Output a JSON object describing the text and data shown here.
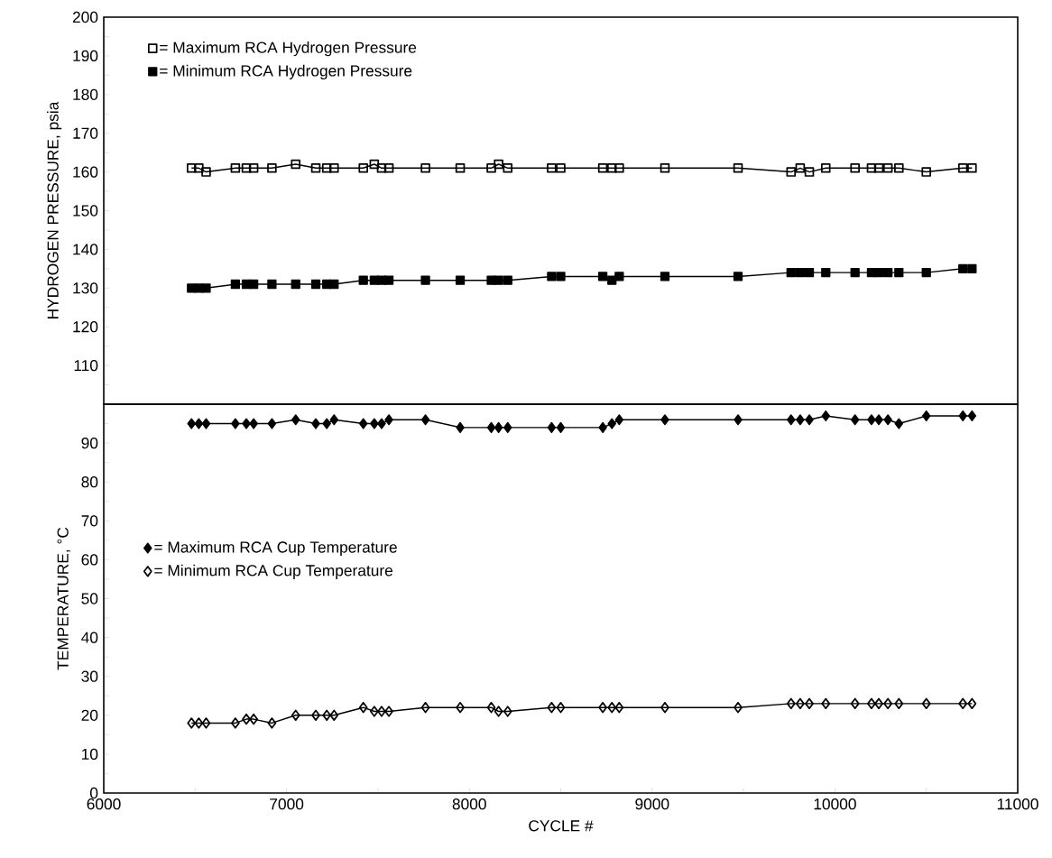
{
  "chart_data": [
    {
      "type": "line",
      "ylabel": "HYDROGEN PRESSURE, psia",
      "xlim": [
        6000,
        11000
      ],
      "ylim": [
        100,
        200
      ],
      "yticks": [
        {
          "value": 105,
          "label": null
        },
        110,
        {
          "value": 115,
          "label": null
        },
        120,
        {
          "value": 125,
          "label": null
        },
        130,
        {
          "value": 135,
          "label": null
        },
        140,
        {
          "value": 145,
          "label": null
        },
        150,
        {
          "value": 155,
          "label": null
        },
        160,
        {
          "value": 165,
          "label": null
        },
        170,
        {
          "value": 175,
          "label": null
        },
        180,
        {
          "value": 185,
          "label": null
        },
        190,
        {
          "value": 195,
          "label": null
        },
        200
      ],
      "tick_labels": "y",
      "legend": "top left",
      "x": [
        6480,
        6520,
        6560,
        6720,
        6780,
        6820,
        6920,
        7050,
        7160,
        7220,
        7260,
        7420,
        7480,
        7520,
        7560,
        7760,
        7950,
        8120,
        8160,
        8210,
        8450,
        8500,
        8730,
        8780,
        8820,
        9070,
        9470,
        9760,
        9810,
        9860,
        9950,
        10110,
        10200,
        10240,
        10290,
        10350,
        10500,
        10700,
        10750
      ],
      "series": [
        {
          "name": "= Maximum RCA Hydrogen Pressure",
          "color": "#000000",
          "marker": "square",
          "values": [
            161,
            161,
            160,
            161,
            161,
            161,
            161,
            162,
            161,
            161,
            161,
            161,
            162,
            161,
            161,
            161,
            161,
            161,
            162,
            161,
            161,
            161,
            161,
            161,
            161,
            161,
            161,
            160,
            161,
            160,
            161,
            161,
            161,
            161,
            161,
            161,
            160,
            161,
            161
          ]
        },
        {
          "name": "= Minimum RCA Hydrogen Pressure",
          "color": "#000000",
          "marker": "square",
          "values": [
            130,
            130,
            130,
            131,
            131,
            131,
            131,
            131,
            131,
            131,
            131,
            132,
            132,
            132,
            132,
            132,
            132,
            132,
            132,
            132,
            133,
            133,
            133,
            132,
            133,
            133,
            133,
            134,
            134,
            134,
            134,
            134,
            134,
            134,
            134,
            134,
            134,
            135,
            135
          ]
        }
      ]
    },
    {
      "type": "line",
      "xlabel": "CYCLE #",
      "ylabel": "TEMPERATURE, °C",
      "xlim": [
        6000,
        11000
      ],
      "xticks": [
        6000,
        {
          "value": 6500,
          "label": null
        },
        7000,
        {
          "value": 7500,
          "label": null
        },
        8000,
        {
          "value": 8500,
          "label": null
        },
        9000,
        {
          "value": 9500,
          "label": null
        },
        10000,
        {
          "value": 10500,
          "label": null
        },
        11000
      ],
      "ylim": [
        0,
        100
      ],
      "yticks": [
        0,
        {
          "value": 5,
          "label": null
        },
        10,
        {
          "value": 15,
          "label": null
        },
        20,
        {
          "value": 25,
          "label": null
        },
        30,
        {
          "value": 35,
          "label": null
        },
        40,
        {
          "value": 45,
          "label": null
        },
        50,
        {
          "value": 55,
          "label": null
        },
        60,
        {
          "value": 65,
          "label": null
        },
        70,
        {
          "value": 75,
          "label": null
        },
        80,
        {
          "value": 85,
          "label": null
        },
        90,
        {
          "value": 95,
          "label": null
        }
      ],
      "legend": "left",
      "x": [
        6480,
        6520,
        6560,
        6720,
        6780,
        6820,
        6920,
        7050,
        7160,
        7220,
        7260,
        7420,
        7480,
        7520,
        7560,
        7760,
        7950,
        8120,
        8160,
        8210,
        8450,
        8500,
        8730,
        8780,
        8820,
        9070,
        9470,
        9760,
        9810,
        9860,
        9950,
        10110,
        10200,
        10240,
        10290,
        10350,
        10500,
        10700,
        10750
      ],
      "series": [
        {
          "name": "= Maximum RCA Cup Temperature",
          "color": "#000000",
          "marker": "diamond",
          "values": [
            95,
            95,
            95,
            95,
            95,
            95,
            95,
            96,
            95,
            95,
            96,
            95,
            95,
            95,
            96,
            96,
            94,
            94,
            94,
            94,
            94,
            94,
            94,
            95,
            96,
            96,
            96,
            96,
            96,
            96,
            97,
            96,
            96,
            96,
            96,
            95,
            97,
            97,
            97
          ]
        },
        {
          "name": "= Minimum RCA Cup Temperature",
          "color": "#000000",
          "marker": "diamond",
          "values": [
            18,
            18,
            18,
            18,
            19,
            19,
            18,
            20,
            20,
            20,
            20,
            22,
            21,
            21,
            21,
            22,
            22,
            22,
            21,
            21,
            22,
            22,
            22,
            22,
            22,
            22,
            22,
            23,
            23,
            23,
            23,
            23,
            23,
            23,
            23,
            23,
            23,
            23,
            23
          ]
        }
      ]
    }
  ]
}
